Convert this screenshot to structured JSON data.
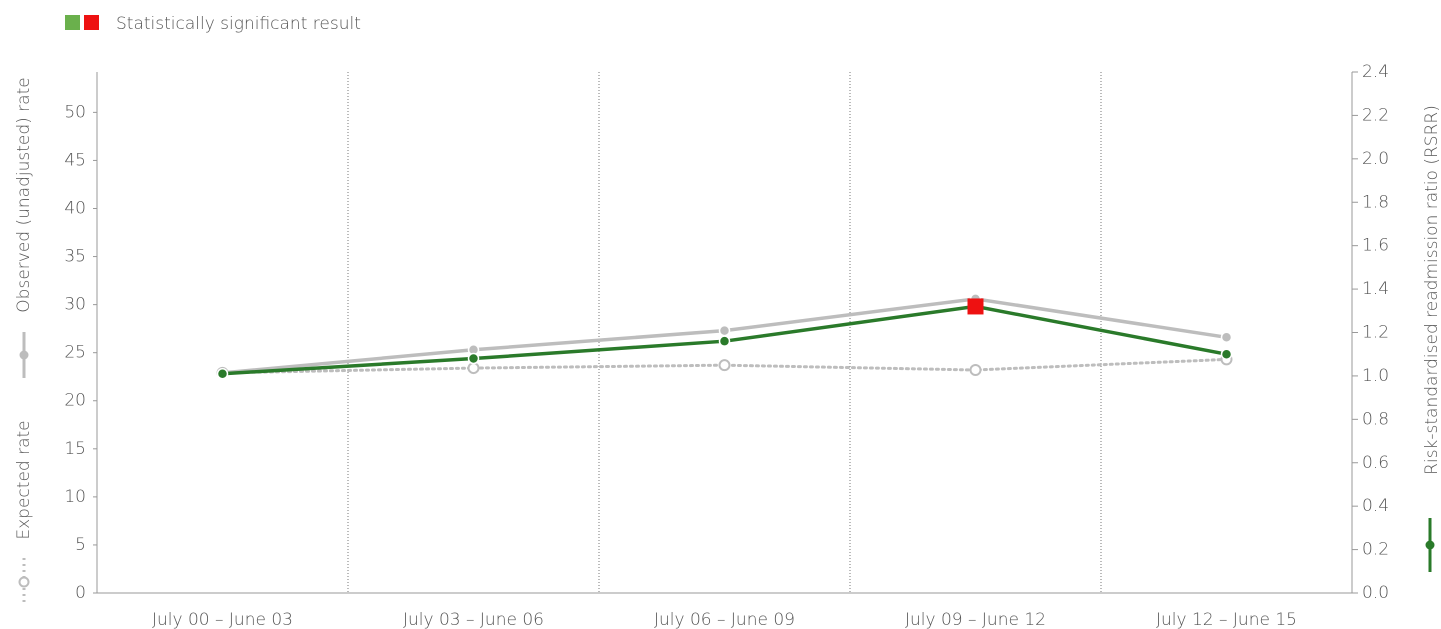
{
  "chart_data": {
    "type": "line",
    "legend_label": "Statistically significant result",
    "y_label": "Observed (unadjusted) rate",
    "y_label_secondary": "Expected rate",
    "y2_label": "Risk-standardised readmission ratio (RSRR)",
    "categories": [
      "July 00 – June 03",
      "July 03 – June 06",
      "July 06 – June 09",
      "July 09 – June 12",
      "July 12 – June 15"
    ],
    "ylim": [
      0,
      54.2
    ],
    "yticks": [
      0,
      5,
      10,
      15,
      20,
      25,
      30,
      35,
      40,
      45,
      50
    ],
    "y2lim": [
      0,
      2.4
    ],
    "y2ticks": [
      {
        "value": 0,
        "label": "0.0"
      },
      {
        "value": 0.2,
        "label": "0.2"
      },
      {
        "value": 0.4,
        "label": "0.4"
      },
      {
        "value": 0.6,
        "label": "0.6"
      },
      {
        "value": 0.8,
        "label": "0.8"
      },
      {
        "value": 1,
        "label": "1.0"
      },
      {
        "value": 1.2,
        "label": "1.2"
      },
      {
        "value": 1.4,
        "label": "1.4"
      },
      {
        "value": 1.6,
        "label": "1.6"
      },
      {
        "value": 1.8,
        "label": "1.8"
      },
      {
        "value": 2,
        "label": "2.0"
      },
      {
        "value": 2.2,
        "label": "2.2"
      },
      {
        "value": 2.4,
        "label": "2.4"
      }
    ],
    "significant_color": "#ee1111",
    "series": [
      {
        "color": "#bdbdbd",
        "style": "solid",
        "values": [
          22.9,
          25.3,
          27.3,
          30.6,
          26.6
        ]
      },
      {
        "color": "#bdbdbd",
        "style": "dotted",
        "values": [
          22.9,
          23.4,
          23.7,
          23.2,
          24.3
        ]
      },
      {
        "color": "#2a7a2a",
        "style": "solid",
        "axis": "y2",
        "values": [
          1.01,
          1.08,
          1.16,
          1.32,
          1.1
        ],
        "significant": [
          false,
          false,
          false,
          true,
          false
        ]
      }
    ]
  }
}
